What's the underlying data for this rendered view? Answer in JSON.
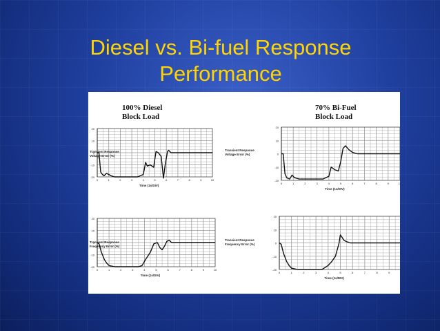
{
  "slide": {
    "title_line1": "Diesel vs. Bi-fuel Response",
    "title_line2": "Performance"
  },
  "cases": [
    {
      "line1": "100% Diesel",
      "line2": "Block Load"
    },
    {
      "line1": "70% Bi-Fuel",
      "line2": "Block Load"
    }
  ],
  "colors": {
    "title": "#ffd400",
    "background": "#1f3f9e",
    "trace": "#111111",
    "grid": "#9a9a9a"
  },
  "chart_data": [
    {
      "type": "line",
      "case": "100% Diesel Block Load",
      "ylabel": "Transient Response Voltage Error (%)",
      "xlabel": "Time (1s/DIV)",
      "xlim": [
        0,
        10
      ],
      "ylim": [
        -20,
        20
      ],
      "xticks": [
        "0",
        "1",
        "2",
        "3",
        "4",
        "5",
        "6",
        "7",
        "8",
        "9",
        "10"
      ],
      "yticks": [
        "20",
        "10",
        "0",
        "-10",
        "-20"
      ],
      "grid": true,
      "x": [
        0,
        0.15,
        0.3,
        0.45,
        0.6,
        0.8,
        1.0,
        1.2,
        1.5,
        2.5,
        3.5,
        4.0,
        4.2,
        4.35,
        4.6,
        4.9,
        5.1,
        5.3,
        5.55,
        5.75,
        5.9,
        6.1,
        6.2,
        6.4,
        6.7,
        7.0,
        8.0,
        10.0
      ],
      "y": [
        0,
        0,
        -16,
        -18,
        -19,
        -17,
        -18,
        -19,
        -20,
        -20,
        -20,
        -18,
        -8,
        -11,
        -10,
        -12,
        1,
        0,
        -3,
        -21,
        -10,
        1,
        2,
        0,
        0,
        0,
        0,
        0
      ]
    },
    {
      "type": "line",
      "case": "70% Bi-Fuel Block Load",
      "ylabel": "Transient Response Voltage Error (%)",
      "xlabel": "Time (1s/DIV)",
      "xlim": [
        0,
        10
      ],
      "ylim": [
        -20,
        20
      ],
      "xticks": [
        "0",
        "1",
        "2",
        "3",
        "4",
        "5",
        "6",
        "7",
        "8",
        "9",
        "10"
      ],
      "yticks": [
        "20",
        "10",
        "0",
        "-10",
        "-20"
      ],
      "grid": true,
      "x": [
        0,
        0.15,
        0.3,
        0.45,
        0.7,
        0.9,
        1.1,
        1.5,
        2.5,
        3.5,
        4.0,
        4.2,
        4.5,
        4.8,
        5.0,
        5.2,
        5.4,
        5.7,
        6.0,
        6.4,
        7.0,
        8.0,
        10.0
      ],
      "y": [
        0,
        0,
        -15,
        -18,
        -19,
        -16,
        -18,
        -19,
        -19,
        -19,
        -17,
        -10,
        -12,
        -13,
        -6,
        4,
        6,
        3,
        1,
        0,
        0,
        0,
        0
      ]
    },
    {
      "type": "line",
      "case": "100% Diesel Block Load",
      "ylabel": "Transient Response Frequency Error (%)",
      "xlabel": "Time (1s/DIV)",
      "xlim": [
        0,
        10
      ],
      "ylim": [
        -20,
        20
      ],
      "xticks": [
        "0",
        "1",
        "2",
        "3",
        "4",
        "5",
        "6",
        "7",
        "8",
        "9",
        "10"
      ],
      "yticks": [
        "20",
        "10",
        "0",
        "-10",
        "-20"
      ],
      "grid": true,
      "x": [
        0,
        0.15,
        0.35,
        0.6,
        0.8,
        1.0,
        1.5,
        2.5,
        3.5,
        3.8,
        4.1,
        4.5,
        4.8,
        5.1,
        5.3,
        5.5,
        5.7,
        5.9,
        6.1,
        6.3,
        6.6,
        7.0,
        8.0,
        10.0
      ],
      "y": [
        0,
        -1,
        -8,
        -14,
        -17,
        -19,
        -20,
        -20,
        -20,
        -19,
        -14,
        -8,
        -1,
        0,
        -4,
        -6,
        -3,
        1,
        2,
        0,
        0,
        0,
        0,
        0
      ]
    },
    {
      "type": "line",
      "case": "70% Bi-Fuel Block Load",
      "ylabel": "Transient Response Frequency Error (%)",
      "xlabel": "Time (1s/DIV)",
      "xlim": [
        0,
        10
      ],
      "ylim": [
        -20,
        20
      ],
      "xticks": [
        "0",
        "1",
        "2",
        "3",
        "4",
        "5",
        "6",
        "7",
        "8",
        "9",
        "10"
      ],
      "yticks": [
        "20",
        "10",
        "0",
        "-10",
        "-20"
      ],
      "grid": true,
      "x": [
        0,
        0.15,
        0.35,
        0.6,
        0.8,
        1.0,
        1.5,
        2.5,
        3.5,
        4.0,
        4.3,
        4.6,
        4.9,
        5.0,
        5.15,
        5.3,
        5.5,
        5.8,
        6.2,
        7.0,
        8.0,
        10.0
      ],
      "y": [
        0,
        -1,
        -8,
        -14,
        -17,
        -19,
        -20,
        -20,
        -20,
        -17,
        -14,
        -10,
        0,
        6,
        4,
        2,
        1,
        0,
        0,
        0,
        0,
        0
      ]
    }
  ]
}
